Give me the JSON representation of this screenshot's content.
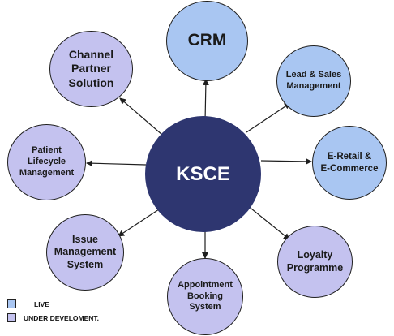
{
  "hub": {
    "label": "KSCE"
  },
  "nodes": [
    {
      "id": "crm",
      "label": "CRM",
      "status": "live"
    },
    {
      "id": "lead-sales",
      "label": "Lead & Sales\nManagement",
      "status": "live"
    },
    {
      "id": "eretail",
      "label": "E-Retail &\nE-Commerce",
      "status": "live"
    },
    {
      "id": "loyalty",
      "label": "Loyalty\nProgramme",
      "status": "under-development"
    },
    {
      "id": "appointment",
      "label": "Appointment\nBooking\nSystem",
      "status": "under-development"
    },
    {
      "id": "issue",
      "label": "Issue\nManagement\nSystem",
      "status": "under-development"
    },
    {
      "id": "patient",
      "label": "Patient\nLifecycle\nManagement",
      "status": "under-development"
    },
    {
      "id": "channel",
      "label": "Channel\nPartner\nSolution",
      "status": "under-development"
    }
  ],
  "legend": {
    "live_label": "LIVE",
    "dev_label": "UNDER DEVELOMENT.",
    "live_color": "#a9c6f2",
    "dev_color": "#c4c2ef"
  }
}
